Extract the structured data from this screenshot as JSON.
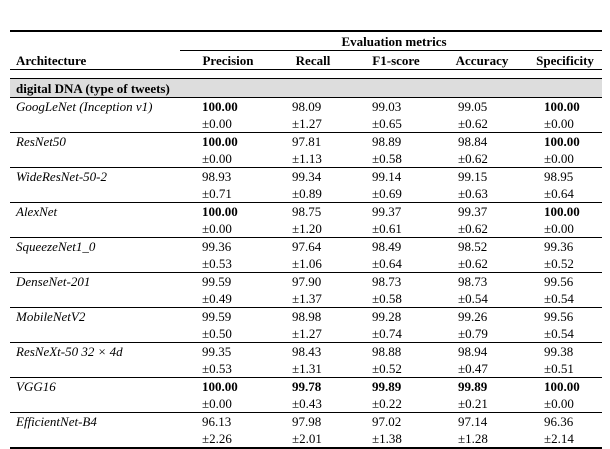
{
  "table": {
    "header": {
      "architecture": "Architecture",
      "group": "Evaluation metrics",
      "columns": [
        "Precision",
        "Recall",
        "F1-score",
        "Accuracy",
        "Specificity"
      ]
    },
    "section": "digital DNA (type of tweets)",
    "rows": [
      {
        "model": "GoogLeNet (Inception v1)",
        "values": [
          "100.00",
          "98.09",
          "99.03",
          "99.05",
          "100.00"
        ],
        "stds": [
          "±0.00",
          "±1.27",
          "±0.65",
          "±0.62",
          "±0.00"
        ],
        "bold": [
          true,
          false,
          false,
          false,
          true
        ]
      },
      {
        "model": "ResNet50",
        "values": [
          "100.00",
          "97.81",
          "98.89",
          "98.84",
          "100.00"
        ],
        "stds": [
          "±0.00",
          "±1.13",
          "±0.58",
          "±0.62",
          "±0.00"
        ],
        "bold": [
          true,
          false,
          false,
          false,
          true
        ]
      },
      {
        "model": "WideResNet-50-2",
        "values": [
          "98.93",
          "99.34",
          "99.14",
          "99.15",
          "98.95"
        ],
        "stds": [
          "±0.71",
          "±0.89",
          "±0.69",
          "±0.63",
          "±0.64"
        ],
        "bold": [
          false,
          false,
          false,
          false,
          false
        ]
      },
      {
        "model": "AlexNet",
        "values": [
          "100.00",
          "98.75",
          "99.37",
          "99.37",
          "100.00"
        ],
        "stds": [
          "±0.00",
          "±1.20",
          "±0.61",
          "±0.62",
          "±0.00"
        ],
        "bold": [
          true,
          false,
          false,
          false,
          true
        ]
      },
      {
        "model": "SqueezeNet1_0",
        "values": [
          "99.36",
          "97.64",
          "98.49",
          "98.52",
          "99.36"
        ],
        "stds": [
          "±0.53",
          "±1.06",
          "±0.64",
          "±0.62",
          "±0.52"
        ],
        "bold": [
          false,
          false,
          false,
          false,
          false
        ]
      },
      {
        "model": "DenseNet-201",
        "values": [
          "99.59",
          "97.90",
          "98.73",
          "98.73",
          "99.56"
        ],
        "stds": [
          "±0.49",
          "±1.37",
          "±0.58",
          "±0.54",
          "±0.54"
        ],
        "bold": [
          false,
          false,
          false,
          false,
          false
        ]
      },
      {
        "model": "MobileNetV2",
        "values": [
          "99.59",
          "98.98",
          "99.28",
          "99.26",
          "99.56"
        ],
        "stds": [
          "±0.50",
          "±1.27",
          "±0.74",
          "±0.79",
          "±0.54"
        ],
        "bold": [
          false,
          false,
          false,
          false,
          false
        ]
      },
      {
        "model": "ResNeXt-50 32 × 4d",
        "values": [
          "99.35",
          "98.43",
          "98.88",
          "98.94",
          "99.38"
        ],
        "stds": [
          "±0.53",
          "±1.31",
          "±0.52",
          "±0.47",
          "±0.51"
        ],
        "bold": [
          false,
          false,
          false,
          false,
          false
        ]
      },
      {
        "model": "VGG16",
        "values": [
          "100.00",
          "99.78",
          "99.89",
          "99.89",
          "100.00"
        ],
        "stds": [
          "±0.00",
          "±0.43",
          "±0.22",
          "±0.21",
          "±0.00"
        ],
        "bold": [
          true,
          true,
          true,
          true,
          true
        ]
      },
      {
        "model": "EfficientNet-B4",
        "values": [
          "96.13",
          "97.98",
          "97.02",
          "97.14",
          "96.36"
        ],
        "stds": [
          "±2.26",
          "±2.01",
          "±1.38",
          "±1.28",
          "±2.14"
        ],
        "bold": [
          false,
          false,
          false,
          false,
          false
        ]
      }
    ]
  }
}
